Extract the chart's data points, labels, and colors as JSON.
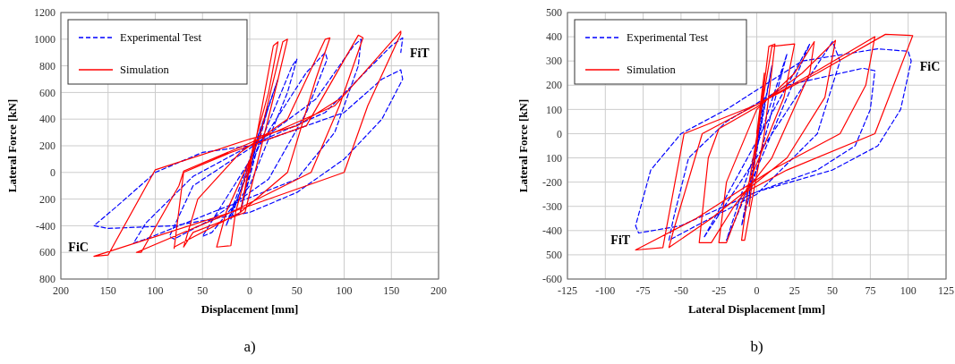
{
  "chart_data": [
    {
      "type": "line",
      "xlabel": "Displacement [mm]",
      "ylabel": "Lateral Force [kN]",
      "xlim": [
        -200,
        200
      ],
      "ylim": [
        -800,
        1200
      ],
      "xticks": [
        {
          "value": -200,
          "label": "200"
        },
        {
          "value": -150,
          "label": "150"
        },
        {
          "value": -100,
          "label": "100"
        },
        {
          "value": -50,
          "label": "50"
        },
        0,
        50,
        100,
        150,
        200
      ],
      "yticks": [
        {
          "value": -800,
          "label": "800"
        },
        {
          "value": -600,
          "label": "600"
        },
        -400,
        {
          "value": -200,
          "label": "200"
        },
        0,
        200,
        400,
        600,
        800,
        1000,
        1200
      ],
      "grid": true,
      "legend": "top left",
      "annotations": [
        {
          "text": "FiT",
          "x": 162,
          "y": 1010
        },
        {
          "text": "FiC",
          "x": -165,
          "y": -630
        },
        "a)"
      ],
      "series": [
        {
          "name": "Experimental Test",
          "color": "#0000ff",
          "line_style": "dashed",
          "x": [
            0,
            10,
            -10,
            20,
            -20,
            30,
            -25,
            45,
            50,
            40,
            0,
            -40,
            -50,
            -30,
            10,
            60,
            80,
            82,
            60,
            20,
            -40,
            -80,
            -85,
            -60,
            0,
            70,
            110,
            118,
            115,
            90,
            50,
            -40,
            -110,
            -123,
            -110,
            -60,
            0,
            100,
            140,
            160,
            162,
            140,
            100,
            50,
            0,
            -80,
            -150,
            -165,
            -140,
            -100,
            -50,
            0,
            80,
            150,
            162,
            160
          ],
          "values": [
            0,
            300,
            -300,
            500,
            -350,
            700,
            -400,
            800,
            850,
            600,
            -100,
            -450,
            -480,
            -250,
            200,
            750,
            900,
            850,
            450,
            -50,
            -350,
            -500,
            -480,
            -100,
            180,
            550,
            950,
            1000,
            800,
            300,
            -50,
            -300,
            -500,
            -530,
            -380,
            -30,
            200,
            450,
            700,
            770,
            700,
            400,
            100,
            -150,
            -300,
            -400,
            -420,
            -400,
            -250,
            0,
            150,
            200,
            450,
            950,
            1010,
            900
          ]
        },
        {
          "name": "Simulation",
          "color": "#ff0000",
          "line_style": "solid",
          "x": [
            0,
            5,
            -10,
            8,
            25,
            30,
            20,
            -15,
            -20,
            -35,
            -25,
            10,
            35,
            40,
            30,
            -5,
            -60,
            -70,
            -55,
            -10,
            40,
            80,
            85,
            70,
            40,
            -10,
            -80,
            -80,
            -70,
            -20,
            60,
            115,
            120,
            95,
            65,
            -20,
            -120,
            -115,
            -75,
            -70,
            0,
            90,
            160,
            160,
            125,
            110,
            100,
            -20,
            -165,
            -150,
            -100,
            0,
            50,
            95
          ],
          "values": [
            0,
            250,
            -300,
            300,
            950,
            980,
            600,
            -300,
            -550,
            -560,
            -300,
            250,
            980,
            1000,
            700,
            -300,
            -450,
            -560,
            -200,
            150,
            400,
            1000,
            1010,
            700,
            0,
            -300,
            -560,
            -570,
            0,
            150,
            350,
            1030,
            1010,
            500,
            0,
            -300,
            -600,
            -600,
            -100,
            10,
            220,
            500,
            1060,
            1040,
            500,
            200,
            0,
            -300,
            -630,
            -620,
            20,
            250,
            350,
            550
          ]
        }
      ]
    },
    {
      "type": "line",
      "xlabel": "Lateral Displacement [mm]",
      "ylabel": "Lateral Force [kN]",
      "xlim": [
        -125,
        125
      ],
      "ylim": [
        -600,
        500
      ],
      "xticks": [
        -125,
        -100,
        -75,
        -50,
        -25,
        0,
        25,
        50,
        75,
        100,
        125
      ],
      "yticks": [
        -600,
        {
          "value": -500,
          "label": "500"
        },
        -400,
        -300,
        -200,
        {
          "value": -100,
          "label": "100"
        },
        0,
        100,
        200,
        300,
        400,
        500
      ],
      "grid": true,
      "legend": "top left",
      "annotations": [
        {
          "text": "FiC",
          "x": 103,
          "y": 340
        },
        {
          "text": "FiT",
          "x": -80,
          "y": -480
        },
        "b)"
      ],
      "series": [
        {
          "name": "Experimental Test",
          "color": "#0000ff",
          "line_style": "dashed",
          "x": [
            0,
            5,
            -5,
            10,
            -10,
            20,
            -20,
            35,
            -35,
            50,
            55,
            40,
            0,
            -40,
            -58,
            -55,
            -45,
            -20,
            20,
            70,
            78,
            75,
            65,
            40,
            0,
            -50,
            -78,
            -80,
            -70,
            -50,
            -20,
            30,
            80,
            100,
            102,
            95,
            80,
            50,
            0
          ],
          "values": [
            0,
            150,
            -250,
            280,
            -380,
            330,
            -440,
            370,
            -430,
            380,
            300,
            0,
            -250,
            -380,
            -440,
            -350,
            -100,
            50,
            200,
            270,
            260,
            100,
            -50,
            -150,
            -240,
            -380,
            -410,
            -380,
            -150,
            0,
            100,
            300,
            350,
            340,
            300,
            100,
            -50,
            -150,
            -240
          ]
        },
        {
          "name": "Simulation",
          "color": "#ff0000",
          "line_style": "solid",
          "x": [
            0,
            5,
            -5,
            8,
            12,
            5,
            -8,
            -10,
            -5,
            10,
            25,
            18,
            -5,
            -20,
            -25,
            -20,
            0,
            25,
            38,
            35,
            10,
            -15,
            -30,
            -38,
            -32,
            -25,
            0,
            30,
            52,
            45,
            20,
            -30,
            -58,
            -55,
            -36,
            0,
            40,
            78,
            72,
            55,
            10,
            -40,
            -80,
            -62,
            -48,
            0,
            40,
            85,
            103,
            78,
            20,
            -10
          ],
          "values": [
            0,
            250,
            -300,
            360,
            370,
            0,
            -440,
            -440,
            -200,
            360,
            370,
            150,
            -200,
            -450,
            -450,
            -200,
            100,
            250,
            380,
            250,
            -100,
            -300,
            -450,
            -450,
            -100,
            20,
            110,
            250,
            385,
            150,
            -100,
            -350,
            -470,
            -400,
            0,
            120,
            260,
            400,
            200,
            0,
            -150,
            -350,
            -480,
            -470,
            0,
            120,
            250,
            410,
            405,
            0,
            -150,
            -250
          ]
        }
      ]
    }
  ]
}
